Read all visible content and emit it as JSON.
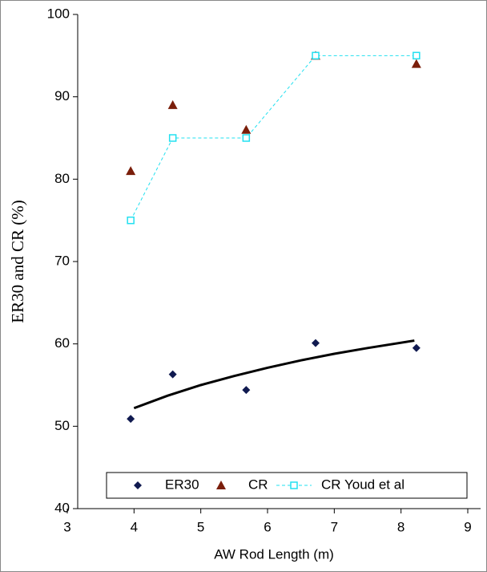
{
  "chart_data": {
    "type": "scatter",
    "xlabel": "AW Rod Length (m)",
    "ylabel": "ER30 and CR (%)",
    "x": [
      3.95,
      4.58,
      5.68,
      6.72,
      8.23
    ],
    "series": [
      {
        "name": "ER30",
        "color": "#101a50",
        "marker": "diamond",
        "values": [
          50.9,
          56.3,
          54.4,
          60.1,
          59.5
        ]
      },
      {
        "name": "CR",
        "color": "#7a1e0a",
        "marker": "triangle",
        "values": [
          81,
          89,
          86,
          95,
          94
        ]
      },
      {
        "name": "CR Youd et al",
        "color": "#22e0f0",
        "marker": "square",
        "line": "dashed",
        "values": [
          75,
          85,
          85,
          95,
          95
        ]
      }
    ],
    "trendline": {
      "color": "#000000",
      "x": [
        4.0,
        4.5,
        5,
        5.5,
        6,
        6.5,
        7,
        7.5,
        8.2
      ],
      "values": [
        52.2,
        53.7,
        55.0,
        56.1,
        57.1,
        58.0,
        58.8,
        59.5,
        60.4
      ]
    },
    "xlim": [
      3,
      9
    ],
    "xticks": [
      3,
      4,
      5,
      6,
      7,
      8,
      9
    ],
    "ylim": [
      40,
      100
    ],
    "yticks": [
      40,
      50,
      60,
      70,
      80,
      90,
      100
    ],
    "grid": false
  }
}
